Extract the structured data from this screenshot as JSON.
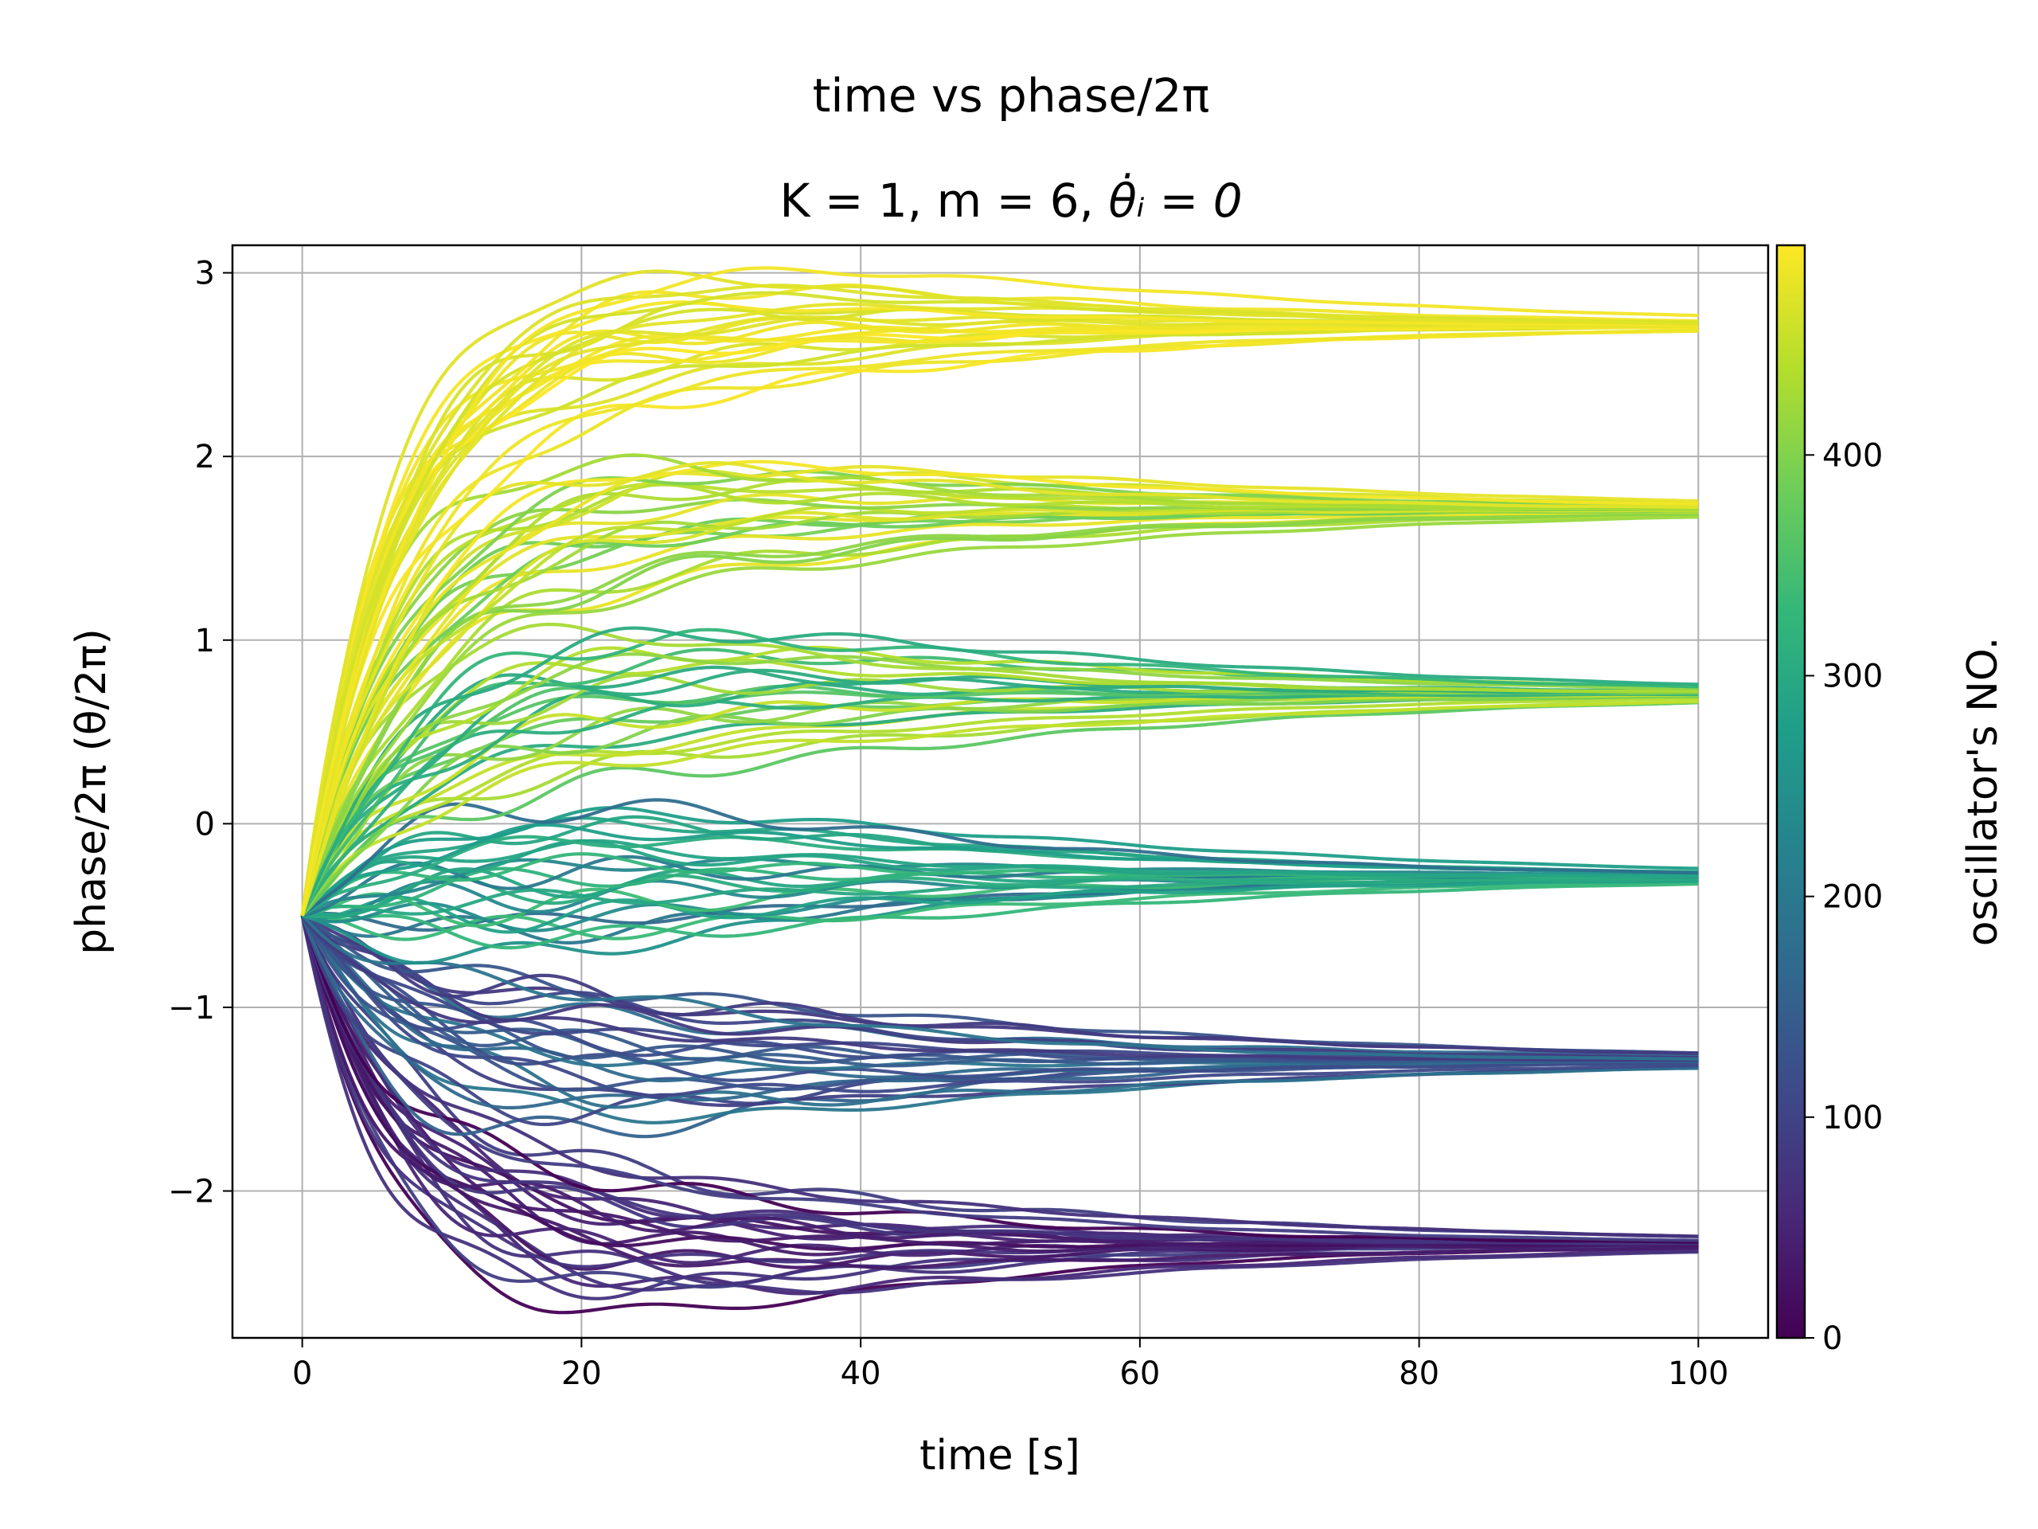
{
  "chart_data": {
    "type": "line",
    "title_line1": "time vs phase/2π",
    "title_line2_prefix": "K = 1, m = 6, ",
    "title_line2_math": "θ̇ᵢ = 0",
    "xlabel": "time [s]",
    "ylabel": "phase/2π (θ/2π)",
    "xlim": [
      -5,
      105
    ],
    "ylim": [
      -2.8,
      3.15
    ],
    "x_ticks": [
      0,
      20,
      40,
      60,
      80,
      100
    ],
    "y_ticks": [
      -2,
      -1,
      0,
      1,
      2,
      3
    ],
    "x_tick_labels": [
      "0",
      "20",
      "40",
      "60",
      "80",
      "100"
    ],
    "y_tick_labels": [
      "−2",
      "−1",
      "0",
      "1",
      "2",
      "3"
    ],
    "grid": true,
    "colormap": "viridis",
    "start_value": -0.5,
    "clusters": [
      {
        "final": -2.29,
        "color_index_range": [
          0,
          80
        ]
      },
      {
        "final": -1.29,
        "color_index_range": [
          80,
          170
        ]
      },
      {
        "final": -0.29,
        "color_index_range": [
          170,
          330
        ]
      },
      {
        "final": 0.71,
        "color_index_range": [
          330,
          450
        ]
      },
      {
        "final": 1.71,
        "color_index_range": [
          360,
          490
        ]
      },
      {
        "final": 2.71,
        "color_index_range": [
          470,
          495
        ]
      }
    ],
    "colorbar": {
      "label": "oscillator's NO.",
      "range": [
        0,
        495
      ],
      "ticks": [
        0,
        100,
        200,
        300,
        400
      ],
      "tick_labels": [
        "0",
        "100",
        "200",
        "300",
        "400"
      ],
      "colors": [
        "#440154",
        "#482878",
        "#3e4989",
        "#31688e",
        "#26828e",
        "#1f9e89",
        "#35b779",
        "#6ece58",
        "#b5de2b",
        "#fde725"
      ]
    }
  }
}
